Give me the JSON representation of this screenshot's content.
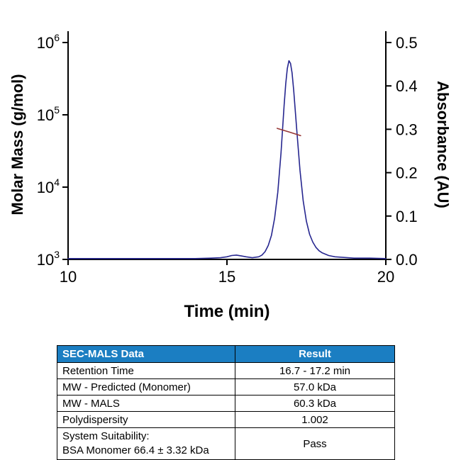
{
  "chart_data": {
    "type": "line",
    "title": "",
    "xlabel": "Time (min)",
    "ylabel_left": "Molar Mass (g/mol)",
    "ylabel_right": "Absorbance (AU)",
    "xlim": [
      10,
      20
    ],
    "x_ticks": [
      10,
      15,
      20
    ],
    "y_left_scale": "log",
    "y_left_lim": [
      1000,
      1000000
    ],
    "y_left_tick_exponents": [
      3,
      4,
      5,
      6
    ],
    "y_right_lim": [
      0,
      0.5
    ],
    "y_right_ticks": [
      0,
      0.1,
      0.2,
      0.3,
      0.4,
      0.5
    ],
    "grid": false,
    "legend": "none",
    "series": [
      {
        "name": "Absorbance trace",
        "axis": "right",
        "color": "#26268f",
        "x": [
          10,
          10.5,
          11,
          11.5,
          12,
          12.5,
          13,
          13.5,
          14,
          14.5,
          14.8,
          15,
          15.15,
          15.3,
          15.45,
          15.6,
          15.8,
          16,
          16.1,
          16.2,
          16.3,
          16.4,
          16.5,
          16.6,
          16.7,
          16.8,
          16.85,
          16.9,
          16.95,
          17,
          17.05,
          17.1,
          17.2,
          17.3,
          17.4,
          17.5,
          17.6,
          17.7,
          17.8,
          17.9,
          18,
          18.2,
          18.4,
          18.6,
          18.8,
          19,
          19.5,
          20
        ],
        "y": [
          0.002,
          0.002,
          0.002,
          0.002,
          0.002,
          0.002,
          0.002,
          0.002,
          0.002,
          0.003,
          0.004,
          0.006,
          0.009,
          0.01,
          0.008,
          0.006,
          0.004,
          0.006,
          0.01,
          0.018,
          0.032,
          0.055,
          0.095,
          0.155,
          0.245,
          0.355,
          0.405,
          0.44,
          0.458,
          0.452,
          0.43,
          0.39,
          0.295,
          0.205,
          0.135,
          0.088,
          0.058,
          0.04,
          0.028,
          0.02,
          0.015,
          0.009,
          0.006,
          0.005,
          0.004,
          0.003,
          0.003,
          0.002
        ],
        "stroke_width": 1.6
      },
      {
        "name": "Molar mass across peak (MALS)",
        "axis": "left",
        "color": "#963634",
        "x": [
          16.58,
          16.95,
          17.32
        ],
        "y": [
          65000,
          58000,
          51500
        ],
        "stroke_width": 1.6
      }
    ]
  },
  "table": {
    "header": {
      "col1": "SEC-MALS Data",
      "col2": "Result"
    },
    "rows": [
      {
        "label": "Retention Time",
        "value": "16.7 - 17.2 min"
      },
      {
        "label": "MW - Predicted (Monomer)",
        "value": "57.0 kDa"
      },
      {
        "label": "MW - MALS",
        "value": "60.3 kDa"
      },
      {
        "label": "Polydispersity",
        "value": "1.002"
      },
      {
        "label": "System Suitability:",
        "label2": "BSA Monomer 66.4 ± 3.32 kDa",
        "value": "Pass"
      }
    ],
    "colors": {
      "header_bg": "#1b7ec2",
      "header_text": "#ffffff",
      "border": "#000000"
    }
  }
}
